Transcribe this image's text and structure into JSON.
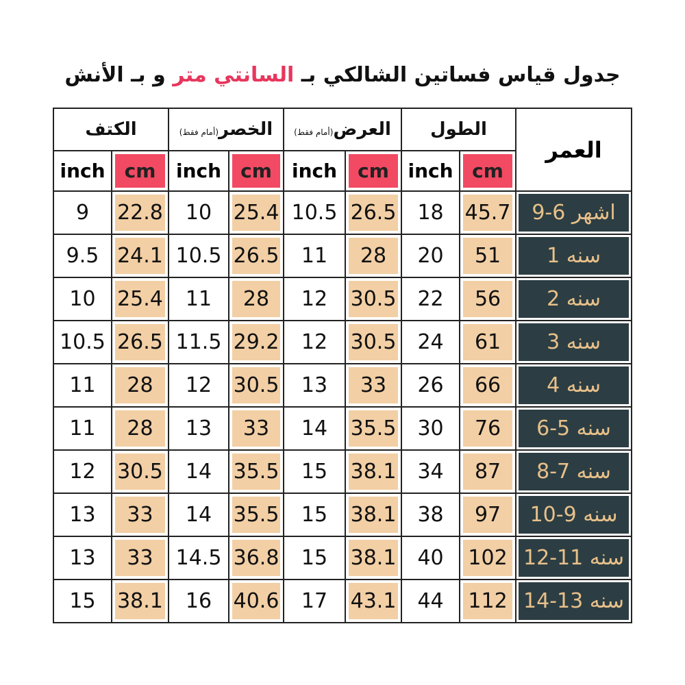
{
  "title": {
    "before": "جدول قياس فساتين الشالكي بـ",
    "highlight": "السانتي متر",
    "after": "و بـ الأنش"
  },
  "table": {
    "age_header": "العمر",
    "groups": [
      {
        "label": "الطول",
        "units": [
          "cm",
          "inch"
        ]
      },
      {
        "label": "العرض",
        "note": "(أمام فقط)",
        "units": [
          "cm",
          "inch"
        ]
      },
      {
        "label": "الخصر",
        "note": "(أمام فقط)",
        "units": [
          "cm",
          "inch"
        ]
      },
      {
        "label": "الكتف",
        "units": [
          "cm",
          "inch"
        ]
      }
    ],
    "rows": [
      {
        "age": "9-6 اشهر",
        "values": [
          45.7,
          18,
          26.5,
          10.5,
          25.4,
          10,
          22.8,
          9
        ]
      },
      {
        "age": "1 سنه",
        "values": [
          51,
          20,
          28,
          11,
          26.5,
          10.5,
          24.1,
          9.5
        ]
      },
      {
        "age": "2 سنه",
        "values": [
          56,
          22,
          30.5,
          12,
          28,
          11,
          25.4,
          10
        ]
      },
      {
        "age": "3 سنه",
        "values": [
          61,
          24,
          30.5,
          12,
          29.2,
          11.5,
          26.5,
          10.5
        ]
      },
      {
        "age": "4 سنه",
        "values": [
          66,
          26,
          33,
          13,
          30.5,
          12,
          28,
          11
        ]
      },
      {
        "age": "6-5 سنه",
        "values": [
          76,
          30,
          35.5,
          14,
          33,
          13,
          28,
          11
        ]
      },
      {
        "age": "8-7 سنه",
        "values": [
          87,
          34,
          38.1,
          15,
          35.5,
          14,
          30.5,
          12
        ]
      },
      {
        "age": "10-9 سنه",
        "values": [
          97,
          38,
          38.1,
          15,
          35.5,
          14,
          33,
          13
        ]
      },
      {
        "age": "12-11 سنه",
        "values": [
          102,
          40,
          38.1,
          15,
          36.8,
          14.5,
          33,
          13
        ]
      },
      {
        "age": "14-13 سنه",
        "values": [
          112,
          44,
          43.1,
          17,
          40.6,
          16,
          38.1,
          15
        ]
      }
    ]
  }
}
